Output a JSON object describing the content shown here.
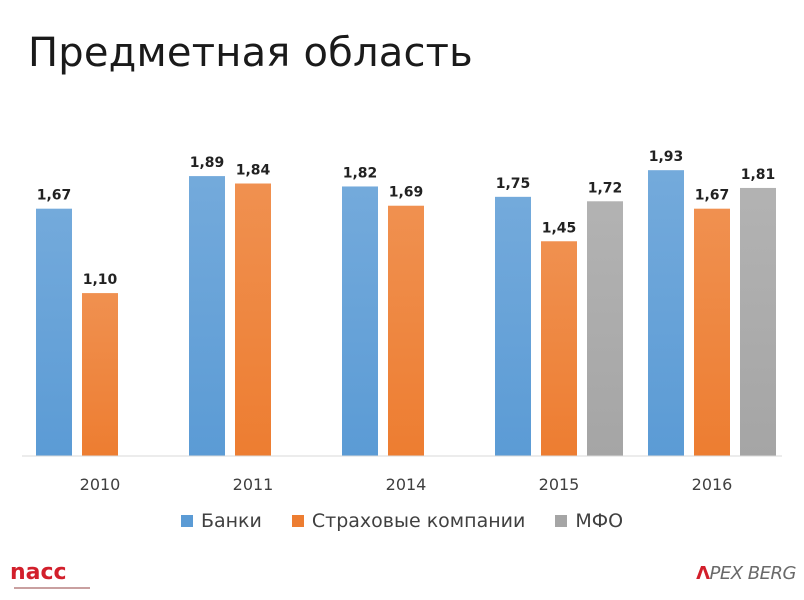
{
  "title": "Предметная область",
  "chart_data": {
    "type": "bar",
    "categories": [
      "2010",
      "2011",
      "2014",
      "2015",
      "2016"
    ],
    "series": [
      {
        "name": "Банки",
        "color": "#5b9bd5",
        "values": [
          1.67,
          1.89,
          1.82,
          1.75,
          1.93
        ],
        "labels": [
          "1,67",
          "1,89",
          "1,82",
          "1,75",
          "1,93"
        ]
      },
      {
        "name": "Страховые компании",
        "color": "#ed7d31",
        "values": [
          1.1,
          1.84,
          1.69,
          1.45,
          1.67
        ],
        "labels": [
          "1,10",
          "1,84",
          "1,69",
          "1,45",
          "1,67"
        ]
      },
      {
        "name": "МФО",
        "color": "#a5a5a5",
        "values": [
          null,
          null,
          null,
          1.72,
          1.81
        ],
        "labels": [
          "",
          "",
          "",
          "1,72",
          "1,81"
        ]
      }
    ],
    "ylim": [
      0,
      2.1
    ],
    "legend_position": "bottom",
    "grid": false
  },
  "legend": [
    {
      "label": "Банки",
      "color": "#5b9bd5"
    },
    {
      "label": "Страховые компании",
      "color": "#ed7d31"
    },
    {
      "label": "МФО",
      "color": "#a5a5a5"
    }
  ],
  "logos": {
    "left": "nacc",
    "right_mark": "Λ",
    "right_text": "PEX BERG"
  }
}
